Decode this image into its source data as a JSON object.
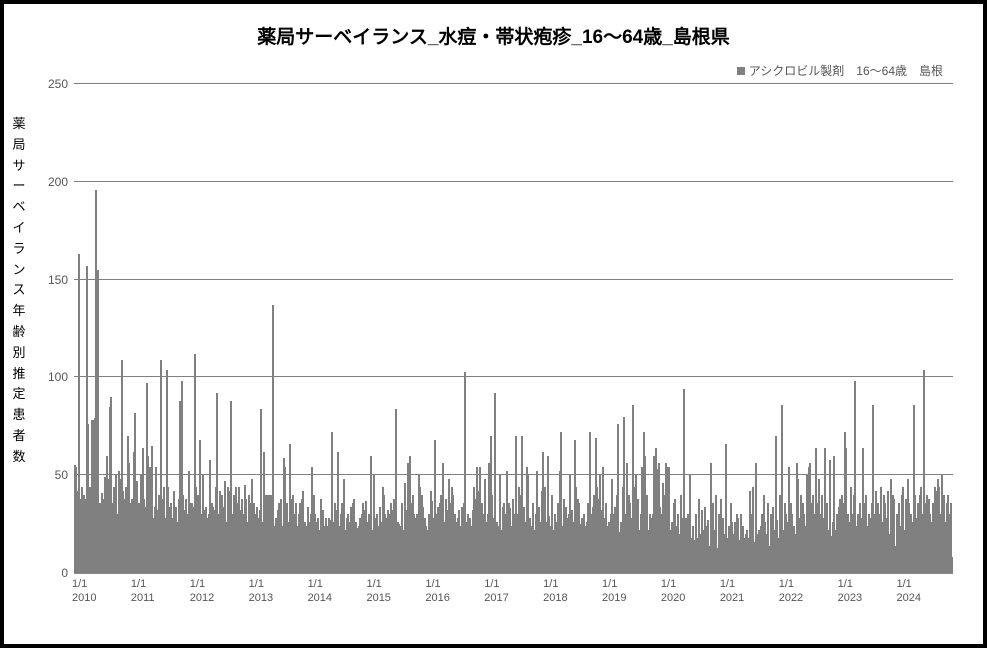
{
  "chart": {
    "type": "bar",
    "title": "薬局サーベイランス_水痘・帯状疱疹_16～64歳_島根県",
    "title_fontsize": 19,
    "title_fontweight": "bold",
    "legend": {
      "label": "アシクロビル製剤　16～64歳　島根",
      "swatch_color": "#808080",
      "fontsize": 12,
      "position": "top-right"
    },
    "y_axis": {
      "label": "薬局サーベイランス年齢別推定患者数",
      "label_fontsize": 13,
      "min": 0,
      "max": 250,
      "tick_step": 50,
      "ticks": [
        0,
        50,
        100,
        150,
        200,
        250
      ],
      "grid_color": "#808080",
      "zero_line_color": "#888888",
      "tick_fontsize": 12
    },
    "x_axis": {
      "ticks": [
        {
          "pos": 0.0,
          "l1": "1/1",
          "l2": "2010"
        },
        {
          "pos": 0.067,
          "l1": "1/1",
          "l2": "2011"
        },
        {
          "pos": 0.134,
          "l1": "1/1",
          "l2": "2012"
        },
        {
          "pos": 0.201,
          "l1": "1/1",
          "l2": "2013"
        },
        {
          "pos": 0.268,
          "l1": "1/1",
          "l2": "2014"
        },
        {
          "pos": 0.335,
          "l1": "1/1",
          "l2": "2015"
        },
        {
          "pos": 0.402,
          "l1": "1/1",
          "l2": "2016"
        },
        {
          "pos": 0.469,
          "l1": "1/1",
          "l2": "2017"
        },
        {
          "pos": 0.536,
          "l1": "1/1",
          "l2": "2018"
        },
        {
          "pos": 0.603,
          "l1": "1/1",
          "l2": "2019"
        },
        {
          "pos": 0.67,
          "l1": "1/1",
          "l2": "2020"
        },
        {
          "pos": 0.737,
          "l1": "1/1",
          "l2": "2021"
        },
        {
          "pos": 0.804,
          "l1": "1/1",
          "l2": "2022"
        },
        {
          "pos": 0.871,
          "l1": "1/1",
          "l2": "2023"
        },
        {
          "pos": 0.938,
          "l1": "1/1",
          "l2": "2024"
        }
      ],
      "tick_fontsize": 11
    },
    "bar_color": "#808080",
    "background_color": "#ffffff",
    "border_color": "#000000",
    "values": [
      55,
      54,
      42,
      163,
      38,
      44,
      40,
      38,
      157,
      76,
      44,
      78,
      78,
      79,
      196,
      155,
      36,
      36,
      41,
      38,
      49,
      60,
      48,
      85,
      90,
      36,
      44,
      50,
      30,
      52,
      48,
      109,
      42,
      38,
      44,
      70,
      56,
      36,
      38,
      62,
      82,
      47,
      36,
      36,
      50,
      64,
      38,
      34,
      97,
      60,
      54,
      65,
      28,
      34,
      54,
      32,
      40,
      109,
      38,
      44,
      28,
      104,
      44,
      34,
      36,
      28,
      42,
      34,
      26,
      38,
      88,
      98,
      40,
      32,
      38,
      30,
      52,
      36,
      36,
      34,
      112,
      44,
      40,
      68,
      30,
      50,
      32,
      34,
      28,
      30,
      58,
      36,
      34,
      32,
      44,
      92,
      30,
      42,
      40,
      34,
      47,
      26,
      44,
      42,
      88,
      30,
      40,
      44,
      36,
      44,
      32,
      38,
      30,
      45,
      38,
      26,
      40,
      36,
      48,
      36,
      30,
      34,
      28,
      32,
      84,
      26,
      62,
      40,
      40,
      40,
      40,
      40,
      137,
      24,
      28,
      32,
      36,
      38,
      24,
      59,
      54,
      36,
      26,
      66,
      38,
      40,
      30,
      36,
      24,
      30,
      36,
      38,
      42,
      26,
      24,
      34,
      26,
      30,
      54,
      40,
      30,
      26,
      28,
      22,
      38,
      32,
      24,
      28,
      24,
      28,
      27,
      72,
      26,
      36,
      32,
      62,
      24,
      30,
      36,
      48,
      22,
      28,
      30,
      26,
      34,
      36,
      38,
      26,
      23,
      24,
      28,
      30,
      36,
      32,
      37,
      26,
      30,
      60,
      22,
      50,
      28,
      30,
      24,
      34,
      26,
      44,
      40,
      30,
      28,
      32,
      30,
      36,
      32,
      38,
      84,
      26,
      25,
      24,
      36,
      22,
      46,
      32,
      56,
      60,
      36,
      40,
      30,
      28,
      30,
      50,
      44,
      40,
      34,
      28,
      24,
      22,
      30,
      42,
      37,
      28,
      68,
      30,
      34,
      36,
      40,
      56,
      26,
      38,
      32,
      48,
      36,
      44,
      40,
      30,
      26,
      28,
      32,
      24,
      34,
      36,
      103,
      26,
      30,
      28,
      24,
      32,
      44,
      38,
      54,
      42,
      54,
      36,
      30,
      48,
      26,
      30,
      56,
      70,
      40,
      28,
      92,
      26,
      24,
      50,
      22,
      34,
      36,
      30,
      52,
      36,
      33,
      24,
      38,
      30,
      70,
      30,
      44,
      40,
      70,
      34,
      26,
      54,
      50,
      28,
      24,
      36,
      22,
      30,
      52,
      34,
      26,
      42,
      62,
      44,
      26,
      60,
      29,
      24,
      40,
      22,
      30,
      26,
      36,
      52,
      72,
      24,
      38,
      34,
      28,
      30,
      50,
      32,
      26,
      68,
      44,
      38,
      36,
      25,
      28,
      30,
      24,
      26,
      36,
      72,
      30,
      34,
      40,
      69,
      44,
      38,
      50,
      32,
      54,
      28,
      36,
      24,
      26,
      30,
      48,
      30,
      34,
      40,
      76,
      21,
      26,
      44,
      80,
      30,
      56,
      40,
      36,
      28,
      86,
      44,
      50,
      38,
      22,
      30,
      54,
      72,
      60,
      40,
      22,
      30,
      28,
      30,
      60,
      64,
      53,
      56,
      34,
      30,
      46,
      40,
      56,
      54,
      54,
      22,
      26,
      36,
      38,
      24,
      30,
      20,
      40,
      28,
      94,
      28,
      20,
      30,
      50,
      18,
      24,
      17,
      30,
      18,
      38,
      20,
      32,
      22,
      34,
      24,
      27,
      14,
      56,
      36,
      22,
      40,
      13,
      30,
      18,
      38,
      28,
      20,
      66,
      18,
      24,
      36,
      26,
      20,
      26,
      30,
      28,
      17,
      30,
      24,
      18,
      20,
      22,
      18,
      42,
      30,
      44,
      16,
      56,
      20,
      22,
      24,
      30,
      40,
      26,
      20,
      36,
      14,
      30,
      34,
      22,
      70,
      27,
      18,
      40,
      86,
      22,
      36,
      30,
      26,
      54,
      36,
      30,
      24,
      20,
      56,
      48,
      28,
      40,
      36,
      30,
      24,
      50,
      54,
      56,
      36,
      40,
      30,
      64,
      36,
      48,
      30,
      40,
      28,
      64,
      36,
      22,
      58,
      19,
      26,
      60,
      22,
      30,
      34,
      38,
      40,
      36,
      72,
      64,
      30,
      26,
      44,
      30,
      40,
      98,
      24,
      30,
      36,
      28,
      64,
      36,
      40,
      24,
      30,
      28,
      36,
      86,
      30,
      42,
      36,
      30,
      44,
      26,
      40,
      36,
      28,
      42,
      20,
      48,
      40,
      38,
      14,
      30,
      36,
      24,
      40,
      44,
      22,
      38,
      48,
      36,
      30,
      26,
      86,
      40,
      28,
      36,
      40,
      44,
      30,
      104,
      36,
      40,
      38,
      30,
      26,
      36,
      44,
      42,
      48,
      44,
      30,
      50,
      40,
      26,
      36,
      40,
      30,
      36,
      8
    ]
  }
}
